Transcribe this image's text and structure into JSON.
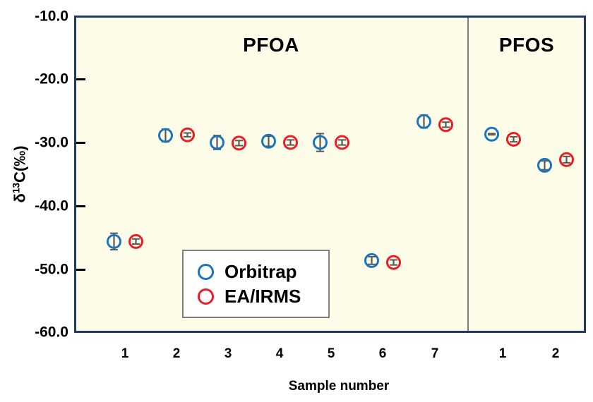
{
  "figure": {
    "y_axis": {
      "title_prefix": "δ",
      "title_sup": "13",
      "title_suffix": "C(‰)",
      "ticks": [
        "-10.0",
        "-20.0",
        "-30.0",
        "-40.0",
        "-50.0",
        "-60.0"
      ]
    },
    "x_axis": {
      "title": "Sample number"
    },
    "sections": [
      {
        "label": "PFOA"
      },
      {
        "label": "PFOS"
      }
    ],
    "legend": [
      {
        "label": "Orbitrap",
        "color": "#1b75bc"
      },
      {
        "label": "EA/IRMS",
        "color": "#ec1c24"
      }
    ]
  },
  "chart_data": {
    "type": "scatter",
    "title": "",
    "xlabel": "Sample number",
    "ylabel": "δ13C(‰)",
    "ylim": [
      -60,
      -10
    ],
    "y_ticks": [
      -10,
      -20,
      -30,
      -40,
      -50,
      -60
    ],
    "grid": false,
    "plot_bg": "#fdfce8",
    "border_color": "#1f3864",
    "divider_color": "#7f7f7f",
    "error_bar_color": "#595959",
    "legend_position": "inside-bottom-center",
    "groups": [
      {
        "name": "PFOA",
        "categories": [
          "1",
          "2",
          "3",
          "4",
          "5",
          "6",
          "7"
        ],
        "series": [
          {
            "name": "Orbitrap",
            "color": "#1b75bc",
            "values": [
              -45.6,
              -28.9,
              -30.0,
              -29.8,
              -30.0,
              -48.6,
              -26.7
            ],
            "errors": [
              1.3,
              1.0,
              1.1,
              0.8,
              1.4,
              0.6,
              1.0
            ]
          },
          {
            "name": "EA/IRMS",
            "color": "#ec1c24",
            "values": [
              -45.6,
              -28.8,
              -30.1,
              -30.0,
              -30.0,
              -48.9,
              -27.2
            ],
            "errors": [
              0.4,
              0.3,
              0.4,
              0.4,
              0.4,
              0.4,
              0.4
            ]
          }
        ]
      },
      {
        "name": "PFOS",
        "categories": [
          "1",
          "2"
        ],
        "series": [
          {
            "name": "Orbitrap",
            "color": "#1b75bc",
            "values": [
              -28.7,
              -33.6
            ],
            "errors": [
              0.1,
              0.7
            ]
          },
          {
            "name": "EA/IRMS",
            "color": "#ec1c24",
            "values": [
              -29.5,
              -32.7
            ],
            "errors": [
              0.4,
              0.5
            ]
          }
        ]
      }
    ]
  }
}
